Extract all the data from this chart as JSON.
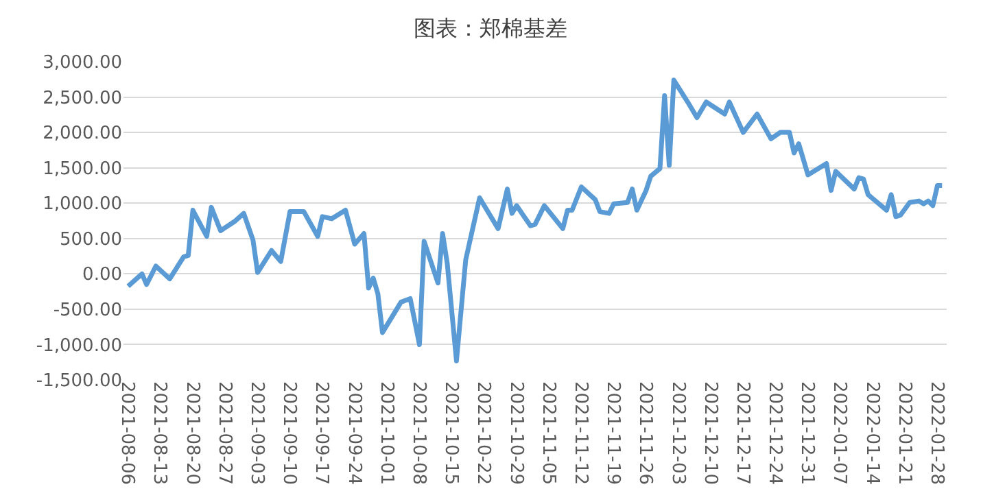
{
  "chart_data": {
    "type": "line",
    "title": "图表：郑棉基差",
    "x": [
      "2021-08-06",
      "2021-08-09",
      "2021-08-10",
      "2021-08-12",
      "2021-08-15",
      "2021-08-18",
      "2021-08-19",
      "2021-08-20",
      "2021-08-23",
      "2021-08-24",
      "2021-08-26",
      "2021-08-29",
      "2021-08-31",
      "2021-09-02",
      "2021-09-03",
      "2021-09-06",
      "2021-09-08",
      "2021-09-10",
      "2021-09-13",
      "2021-09-16",
      "2021-09-17",
      "2021-09-19",
      "2021-09-22",
      "2021-09-24",
      "2021-09-26",
      "2021-09-27",
      "2021-09-28",
      "2021-09-29",
      "2021-09-30",
      "2021-10-04",
      "2021-10-06",
      "2021-10-08",
      "2021-10-09",
      "2021-10-12",
      "2021-10-13",
      "2021-10-14",
      "2021-10-16",
      "2021-10-18",
      "2021-10-21",
      "2021-10-25",
      "2021-10-27",
      "2021-10-28",
      "2021-10-29",
      "2021-11-01",
      "2021-11-02",
      "2021-11-04",
      "2021-11-08",
      "2021-11-09",
      "2021-11-10",
      "2021-11-12",
      "2021-11-15",
      "2021-11-16",
      "2021-11-18",
      "2021-11-19",
      "2021-11-22",
      "2021-11-23",
      "2021-11-24",
      "2021-11-26",
      "2021-11-27",
      "2021-11-29",
      "2021-11-30",
      "2021-12-01",
      "2021-12-02",
      "2021-12-05",
      "2021-12-07",
      "2021-12-09",
      "2021-12-13",
      "2021-12-14",
      "2021-12-17",
      "2021-12-20",
      "2021-12-23",
      "2021-12-25",
      "2021-12-27",
      "2021-12-28",
      "2021-12-29",
      "2021-12-31",
      "2022-01-04",
      "2022-01-05",
      "2022-01-06",
      "2022-01-10",
      "2022-01-11",
      "2022-01-12",
      "2022-01-13",
      "2022-01-17",
      "2022-01-18",
      "2022-01-19",
      "2022-01-20",
      "2022-01-22",
      "2022-01-24",
      "2022-01-25",
      "2022-01-26",
      "2022-01-27",
      "2022-01-28",
      "2022-01-29"
    ],
    "series": [
      {
        "color": "#5b9bd5",
        "values": [
          -175,
          0,
          -150,
          110,
          -70,
          240,
          260,
          900,
          530,
          940,
          610,
          740,
          855,
          480,
          20,
          330,
          175,
          880,
          880,
          530,
          810,
          780,
          900,
          420,
          570,
          -200,
          -60,
          -280,
          -830,
          -400,
          -350,
          -1000,
          460,
          -130,
          570,
          150,
          -1230,
          200,
          1075,
          640,
          1200,
          855,
          965,
          680,
          700,
          965,
          640,
          900,
          900,
          1230,
          1050,
          880,
          855,
          990,
          1010,
          1200,
          900,
          1180,
          1380,
          1490,
          2520,
          1535,
          2740,
          2430,
          2210,
          2430,
          2260,
          2430,
          2000,
          2260,
          1910,
          2000,
          2000,
          1710,
          1840,
          1400,
          1560,
          1180,
          1450,
          1200,
          1360,
          1340,
          1120,
          900,
          1120,
          810,
          830,
          1010,
          1030,
          990,
          1030,
          965,
          1250,
          1250
        ]
      }
    ],
    "xlim": [
      "2021-08-05",
      "2022-01-30"
    ],
    "xticks": [
      "2021-08-06",
      "2021-08-13",
      "2021-08-20",
      "2021-08-27",
      "2021-09-03",
      "2021-09-10",
      "2021-09-17",
      "2021-09-24",
      "2021-10-01",
      "2021-10-08",
      "2021-10-15",
      "2021-10-22",
      "2021-10-29",
      "2021-11-05",
      "2021-11-12",
      "2021-11-19",
      "2021-11-26",
      "2021-12-03",
      "2021-12-10",
      "2021-12-17",
      "2021-12-24",
      "2021-12-31",
      "2022-01-07",
      "2022-01-14",
      "2022-01-21",
      "2022-01-28"
    ],
    "ylim": [
      -1500,
      3000
    ],
    "yticks": [
      {
        "value": -1500,
        "label": "-1,500.00"
      },
      {
        "value": -1000,
        "label": "-1,000.00"
      },
      {
        "value": -500,
        "label": "-500.00"
      },
      {
        "value": 0,
        "label": "0.00"
      },
      {
        "value": 500,
        "label": "500.00"
      },
      {
        "value": 1000,
        "label": "1,000.00"
      },
      {
        "value": 1500,
        "label": "1,500.00"
      },
      {
        "value": 2000,
        "label": "2,000.00"
      },
      {
        "value": 2500,
        "label": "2,500.00"
      },
      {
        "value": 3000,
        "label": "3,000.00"
      }
    ],
    "grid": "y",
    "marker": "none",
    "line_style": "solid"
  }
}
